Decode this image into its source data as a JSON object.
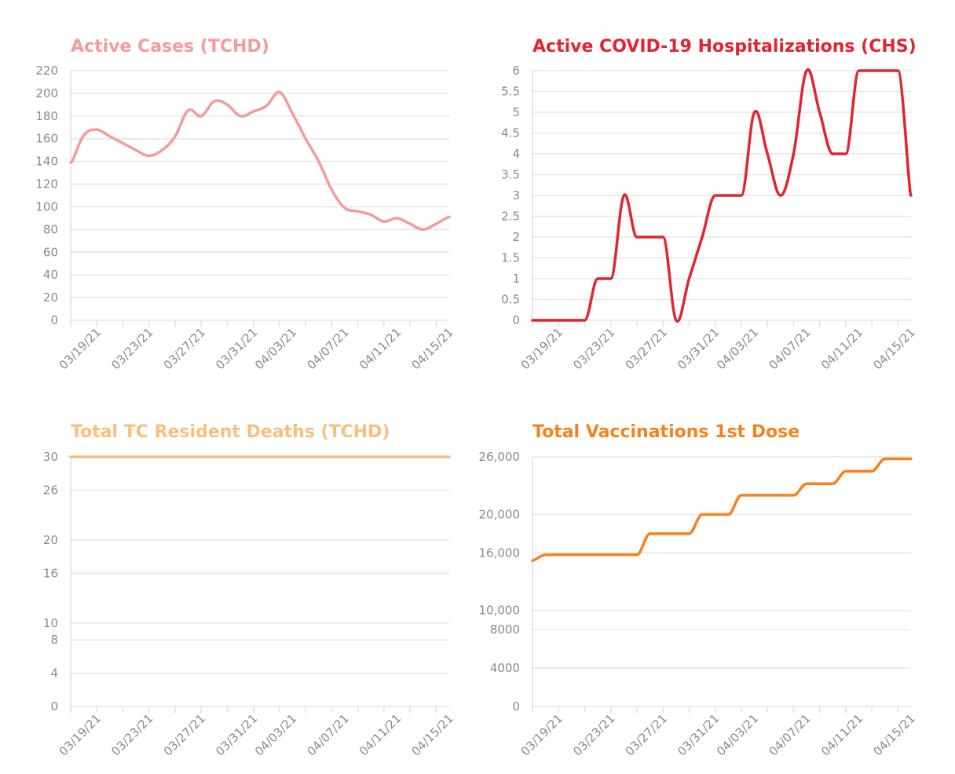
{
  "chart_data": [
    {
      "type": "line",
      "title": "Active Cases (TCHD)",
      "color": "#f59b9b",
      "x_tick_labels": [
        "03/19/21",
        "03/23/21",
        "03/27/21",
        "03/31/21",
        "04/03/21",
        "04/07/21",
        "04/11/21",
        "04/15/21"
      ],
      "y_ticks": [
        0,
        20,
        40,
        60,
        80,
        100,
        120,
        140,
        160,
        180,
        200,
        220
      ],
      "y_tick_labels": [
        "0",
        "20",
        "40",
        "60",
        "80",
        "100",
        "120",
        "140",
        "160",
        "180",
        "200",
        "220"
      ],
      "ylim": [
        0,
        220
      ],
      "x": [
        "03/17/21",
        "03/18/21",
        "03/19/21",
        "03/20/21",
        "03/21/21",
        "03/22/21",
        "03/23/21",
        "03/24/21",
        "03/25/21",
        "03/26/21",
        "03/27/21",
        "03/28/21",
        "03/29/21",
        "03/30/21",
        "03/31/21",
        "04/01/21",
        "04/02/21",
        "04/03/21",
        "04/04/21",
        "04/05/21",
        "04/06/21",
        "04/07/21",
        "04/08/21",
        "04/09/21",
        "04/10/21",
        "04/11/21",
        "04/12/21",
        "04/13/21",
        "04/14/21",
        "04/15/21"
      ],
      "values": [
        139,
        163,
        168,
        162,
        156,
        150,
        145,
        150,
        162,
        185,
        180,
        193,
        190,
        180,
        184,
        189,
        201,
        182,
        160,
        140,
        115,
        99,
        96,
        93,
        87,
        90,
        85,
        80,
        85,
        91
      ]
    },
    {
      "type": "line",
      "title": "Active COVID-19 Hospitalizations (CHS)",
      "color": "#e02530",
      "x_tick_labels": [
        "03/19/21",
        "03/23/21",
        "03/27/21",
        "03/31/21",
        "04/03/21",
        "04/07/21",
        "04/11/21",
        "04/15/21"
      ],
      "y_ticks": [
        0,
        0.5,
        1,
        1.5,
        2,
        2.5,
        3,
        3.5,
        4,
        4.5,
        5,
        5.5,
        6
      ],
      "y_tick_labels": [
        "0",
        "0.5",
        "1",
        "1.5",
        "2",
        "2.5",
        "3",
        "3.5",
        "4",
        "4.5",
        "5",
        "5.5",
        "6"
      ],
      "ylim": [
        0,
        6
      ],
      "x": [
        "03/17/21",
        "03/18/21",
        "03/19/21",
        "03/20/21",
        "03/21/21",
        "03/22/21",
        "03/23/21",
        "03/24/21",
        "03/25/21",
        "03/26/21",
        "03/27/21",
        "03/28/21",
        "03/29/21",
        "03/30/21",
        "03/31/21",
        "04/01/21",
        "04/02/21",
        "04/03/21",
        "04/04/21",
        "04/05/21",
        "04/06/21",
        "04/07/21",
        "04/08/21",
        "04/09/21",
        "04/10/21",
        "04/11/21",
        "04/12/21",
        "04/13/21",
        "04/14/21",
        "04/15/21"
      ],
      "values": [
        0,
        0,
        0,
        0,
        0,
        1,
        1,
        3,
        2,
        2,
        2,
        0,
        1,
        2,
        3,
        3,
        3,
        5,
        4,
        3,
        4,
        6,
        5,
        4,
        4,
        6,
        6,
        6,
        6,
        3
      ]
    },
    {
      "type": "line",
      "title": "Total TC Resident Deaths (TCHD)",
      "color": "#fbbe7c",
      "x_tick_labels": [
        "03/19/21",
        "03/23/21",
        "03/27/21",
        "03/31/21",
        "04/03/21",
        "04/07/21",
        "04/11/21",
        "04/15/21"
      ],
      "y_ticks": [
        0,
        4,
        8,
        10,
        16,
        20,
        26,
        30
      ],
      "y_tick_labels": [
        "0",
        "4",
        "8",
        "10",
        "16",
        "20",
        "26",
        "30"
      ],
      "ylim": [
        0,
        30
      ],
      "x": [
        "03/17/21",
        "04/15/21"
      ],
      "values": [
        30,
        30
      ]
    },
    {
      "type": "line",
      "title": "Total Vaccinations 1st Dose",
      "color": "#f7811e",
      "x_tick_labels": [
        "03/19/21",
        "03/23/21",
        "03/27/21",
        "03/31/21",
        "04/03/21",
        "04/07/21",
        "04/11/21",
        "04/15/21"
      ],
      "y_ticks": [
        0,
        4000,
        8000,
        10000,
        16000,
        20000,
        26000
      ],
      "y_tick_labels": [
        "0",
        "4000",
        "8000",
        "10,000",
        "16,000",
        "20,000",
        "26,000"
      ],
      "ylim": [
        0,
        26000
      ],
      "x": [
        "03/17/21",
        "03/18/21",
        "03/19/21",
        "03/20/21",
        "03/21/21",
        "03/22/21",
        "03/23/21",
        "03/24/21",
        "03/25/21",
        "03/26/21",
        "03/27/21",
        "03/28/21",
        "03/29/21",
        "03/30/21",
        "03/31/21",
        "04/01/21",
        "04/02/21",
        "04/03/21",
        "04/04/21",
        "04/05/21",
        "04/06/21",
        "04/07/21",
        "04/08/21",
        "04/09/21",
        "04/10/21",
        "04/11/21",
        "04/12/21",
        "04/13/21",
        "04/14/21",
        "04/15/21"
      ],
      "values": [
        15200,
        15800,
        15800,
        15800,
        15800,
        15800,
        15800,
        15800,
        15800,
        18000,
        18000,
        18000,
        18000,
        20000,
        20000,
        20000,
        22000,
        22000,
        22000,
        22000,
        22000,
        23200,
        23200,
        23200,
        24500,
        24500,
        24500,
        25800,
        25800,
        25800
      ]
    }
  ]
}
